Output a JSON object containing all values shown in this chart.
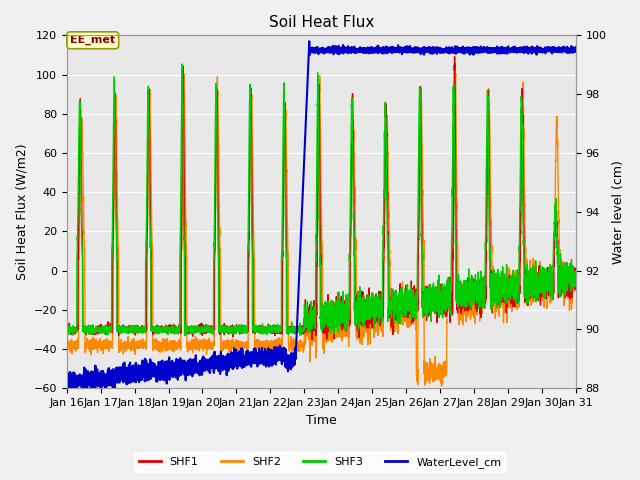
{
  "title": "Soil Heat Flux",
  "xlabel": "Time",
  "ylabel_left": "Soil Heat Flux (W/m2)",
  "ylabel_right": "Water level (cm)",
  "ylim_left": [
    -60,
    120
  ],
  "ylim_right": [
    88,
    100
  ],
  "yticks_left": [
    -60,
    -40,
    -20,
    0,
    20,
    40,
    60,
    80,
    100,
    120
  ],
  "yticks_right": [
    88,
    90,
    92,
    94,
    96,
    98,
    100
  ],
  "xtick_labels": [
    "Jan 16",
    "Jan 17",
    "Jan 18",
    "Jan 19",
    "Jan 20",
    "Jan 21",
    "Jan 22",
    "Jan 23",
    "Jan 24",
    "Jan 25",
    "Jan 26",
    "Jan 27",
    "Jan 28",
    "Jan 29",
    "Jan 30",
    "Jan 31"
  ],
  "color_shf1": "#dd0000",
  "color_shf2": "#ff8800",
  "color_shf3": "#00cc00",
  "color_water": "#0000cc",
  "legend_labels": [
    "SHF1",
    "SHF2",
    "SHF3",
    "WaterLevel_cm"
  ],
  "annotation_text": "EE_met",
  "background_color": "#f0f0f0",
  "plot_bg_color": "#e8e8e8",
  "grid_color": "#ffffff",
  "lw_shf": 1.0,
  "lw_water": 1.5
}
